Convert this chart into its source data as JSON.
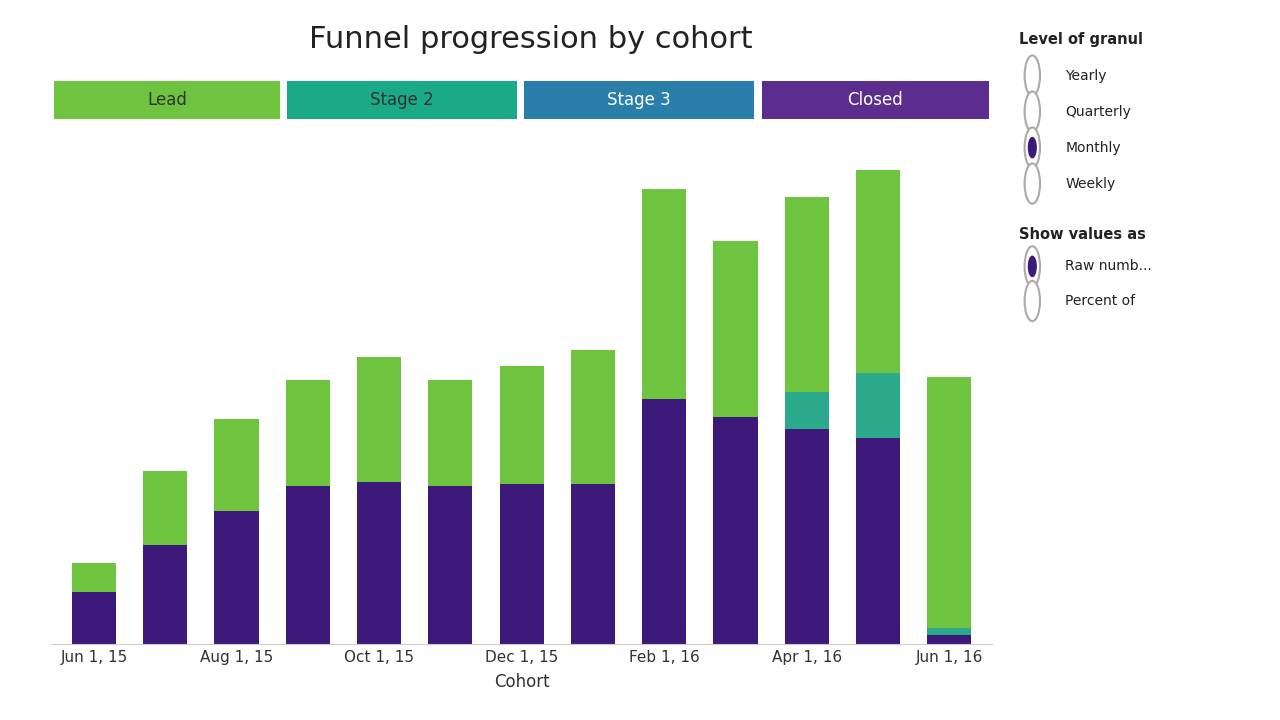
{
  "title": "Funnel progression by cohort",
  "xlabel": "Cohort",
  "xtick_labels": [
    "Jun 1, 15",
    "Aug 1, 15",
    "Oct 1, 15",
    "Dec 1, 15",
    "Feb 1, 16",
    "Apr 1, 16",
    "Jun 1, 16"
  ],
  "xtick_positions": [
    0,
    2,
    4,
    6,
    8,
    10,
    12
  ],
  "color_purple_bar": "#3d1a7a",
  "color_green_bar": "#6ec43e",
  "color_teal_bar": "#2aaa8a",
  "header_lead_color": "#6ec43e",
  "header_stage2_color": "#1aaa88",
  "header_stage3_color": "#2a7faa",
  "header_closed_color": "#5b2d8e",
  "bg_color": "#ffffff",
  "sidebar_bg": "#eeeeee",
  "bar_width": 0.62,
  "title_fontsize": 22,
  "bars": [
    {
      "purple": 58,
      "teal": 0,
      "green": 32
    },
    {
      "purple": 110,
      "teal": 0,
      "green": 82
    },
    {
      "purple": 148,
      "teal": 0,
      "green": 102
    },
    {
      "purple": 175,
      "teal": 0,
      "green": 118
    },
    {
      "purple": 180,
      "teal": 0,
      "green": 138
    },
    {
      "purple": 175,
      "teal": 0,
      "green": 118
    },
    {
      "purple": 178,
      "teal": 0,
      "green": 130
    },
    {
      "purple": 178,
      "teal": 0,
      "green": 148
    },
    {
      "purple": 272,
      "teal": 0,
      "green": 232
    },
    {
      "purple": 252,
      "teal": 0,
      "green": 195
    },
    {
      "purple": 238,
      "teal": 42,
      "green": 215
    },
    {
      "purple": 228,
      "teal": 72,
      "green": 225
    },
    {
      "purple": 10,
      "teal": 8,
      "green": 278
    }
  ],
  "sidebar_title1": "Level of granul",
  "sidebar_title2": "Show values as",
  "radio1_labels": [
    "Yearly",
    "Quarterly",
    "Monthly",
    "Weekly"
  ],
  "radio1_selected": 2,
  "radio2_labels": [
    "Raw numb...",
    "Percent of"
  ],
  "radio2_selected": 0
}
